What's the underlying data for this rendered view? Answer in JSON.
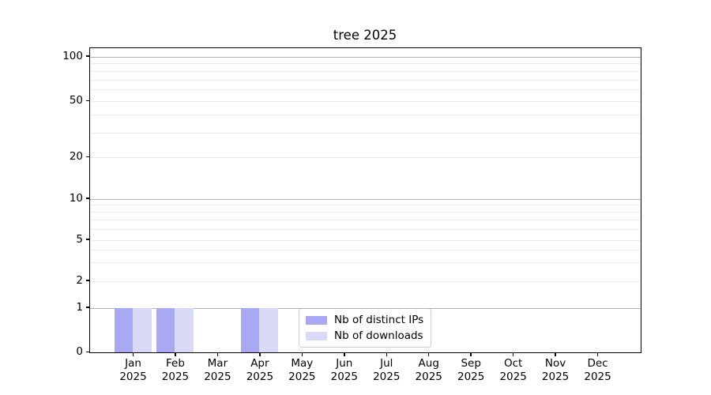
{
  "chart_data": {
    "type": "bar",
    "title": "tree 2025",
    "xlabel": "",
    "ylabel": "",
    "yscale": "symlog",
    "ylim": [
      0,
      115
    ],
    "grid": true,
    "legend_position": "lower center",
    "x_tick_year": "2025",
    "categories": [
      "Jan",
      "Feb",
      "Mar",
      "Apr",
      "May",
      "Jun",
      "Jul",
      "Aug",
      "Sep",
      "Oct",
      "Nov",
      "Dec"
    ],
    "yticks": [
      0,
      1,
      2,
      5,
      10,
      20,
      50,
      100
    ],
    "series": [
      {
        "name": "Nb of distinct IPs",
        "color": "#a9a9f3",
        "values": [
          1,
          1,
          0,
          1,
          0,
          0,
          0,
          0,
          0,
          0,
          0,
          0
        ]
      },
      {
        "name": "Nb of downloads",
        "color": "#d9d9f8",
        "values": [
          1,
          1,
          0,
          1,
          0,
          0,
          0,
          0,
          0,
          0,
          0,
          0
        ]
      }
    ],
    "colors": {
      "grid_major": "#b3b3b3",
      "grid_minor": "#ececec",
      "axis": "#000000",
      "background": "#ffffff"
    }
  }
}
